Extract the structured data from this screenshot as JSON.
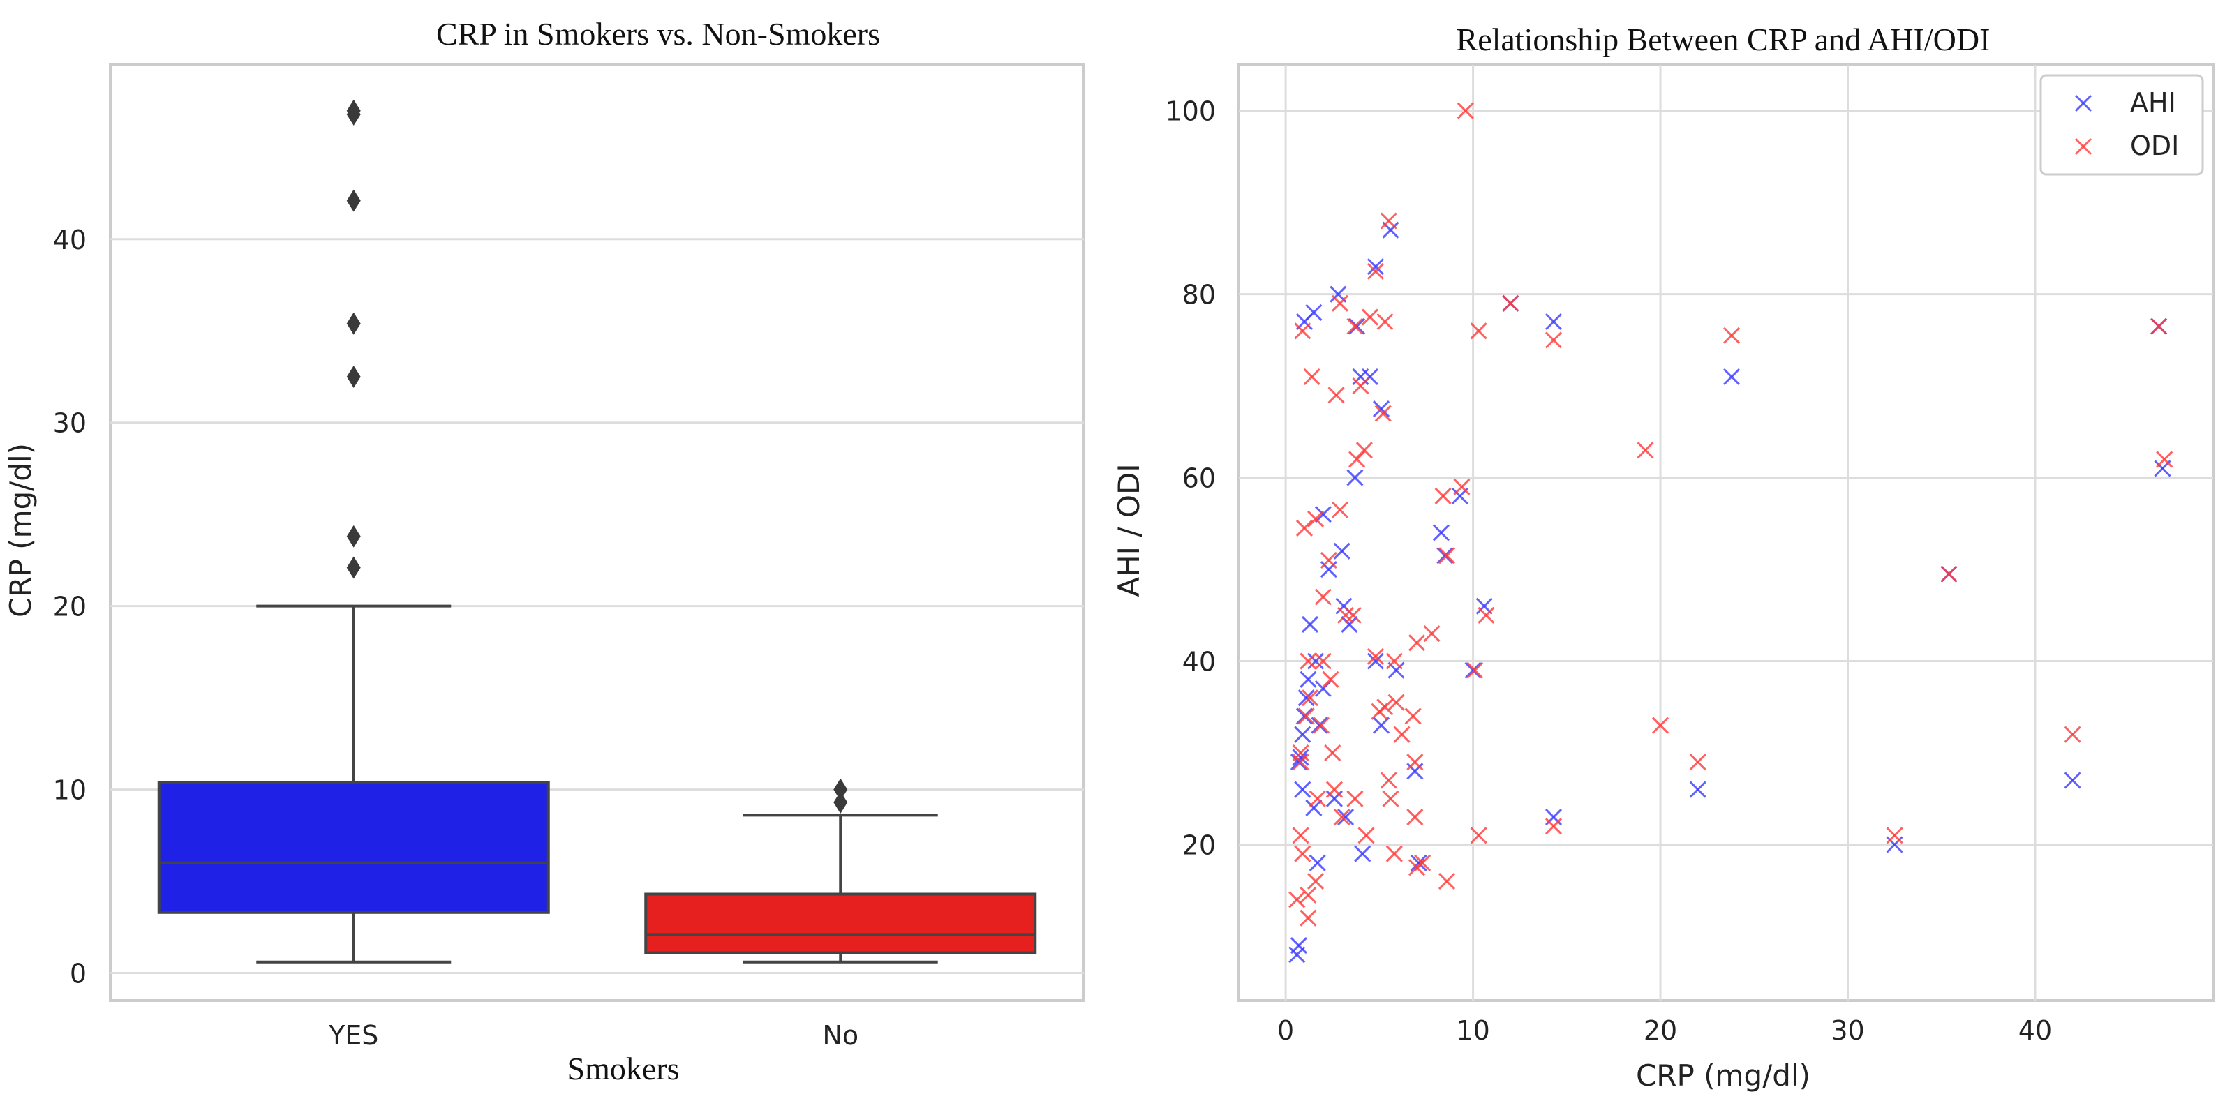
{
  "chart_data": [
    {
      "type": "box",
      "title": "CRP in Smokers vs. Non-Smokers",
      "xlabel": "Smokers",
      "ylabel": "CRP (mg/dl)",
      "categories": [
        "YES",
        "No"
      ],
      "ylim": [
        -1.5,
        49.5
      ],
      "yticks": [
        0,
        10,
        20,
        30,
        40
      ],
      "grid": true,
      "boxes": [
        {
          "category": "YES",
          "color": "#1f22e6",
          "whisker_low": 0.6,
          "q1": 3.3,
          "median": 6.0,
          "q3": 10.4,
          "whisker_high": 20.0,
          "outliers": [
            22.1,
            23.8,
            32.5,
            35.4,
            42.1,
            46.8,
            47.0
          ]
        },
        {
          "category": "No",
          "color": "#e61f1f",
          "whisker_low": 0.6,
          "q1": 1.1,
          "median": 2.1,
          "q3": 4.3,
          "whisker_high": 8.6,
          "outliers": [
            9.3,
            10.0
          ]
        }
      ]
    },
    {
      "type": "scatter",
      "title": "Relationship Between CRP and AHI/ODI",
      "xlabel": "CRP (mg/dl)",
      "ylabel": "AHI / ODI",
      "xlim": [
        -2.5,
        49.5
      ],
      "ylim": [
        3,
        105
      ],
      "xticks": [
        0,
        10,
        20,
        30,
        40
      ],
      "yticks": [
        20,
        40,
        60,
        80,
        100
      ],
      "grid": true,
      "legend": "top-right",
      "series": [
        {
          "name": "AHI",
          "color": "#3a3aff",
          "marker": "x",
          "points": [
            [
              0.6,
              8
            ],
            [
              0.7,
              9
            ],
            [
              0.7,
              29
            ],
            [
              0.8,
              29.5
            ],
            [
              0.9,
              26
            ],
            [
              0.9,
              32
            ],
            [
              1.0,
              34
            ],
            [
              1.1,
              36
            ],
            [
              1.2,
              38
            ],
            [
              1.3,
              44
            ],
            [
              1.5,
              24
            ],
            [
              1.6,
              40
            ],
            [
              1.7,
              18
            ],
            [
              1.8,
              33
            ],
            [
              2.0,
              56
            ],
            [
              2.0,
              37
            ],
            [
              2.3,
              50
            ],
            [
              2.6,
              25
            ],
            [
              2.8,
              80
            ],
            [
              3.0,
              52
            ],
            [
              3.1,
              46
            ],
            [
              3.2,
              23
            ],
            [
              3.4,
              44
            ],
            [
              3.7,
              60
            ],
            [
              3.8,
              76.5
            ],
            [
              4.0,
              71
            ],
            [
              4.1,
              19
            ],
            [
              4.5,
              71
            ],
            [
              4.8,
              40
            ],
            [
              4.8,
              83
            ],
            [
              5.1,
              67.5
            ],
            [
              5.1,
              33
            ],
            [
              5.6,
              87
            ],
            [
              5.9,
              39
            ],
            [
              6.9,
              28
            ],
            [
              7.1,
              18
            ],
            [
              8.3,
              54
            ],
            [
              8.5,
              51.5
            ],
            [
              9.3,
              58
            ],
            [
              10.0,
              39
            ],
            [
              10.6,
              46
            ],
            [
              12.0,
              79
            ],
            [
              14.3,
              77
            ],
            [
              14.3,
              23
            ],
            [
              22.0,
              26
            ],
            [
              23.8,
              71
            ],
            [
              32.5,
              20
            ],
            [
              35.4,
              49.5
            ],
            [
              42.0,
              27
            ],
            [
              46.8,
              61
            ],
            [
              46.6,
              76.5
            ],
            [
              1.0,
              77
            ],
            [
              1.5,
              78
            ]
          ]
        },
        {
          "name": "ODI",
          "color": "#ff3a3a",
          "marker": "x",
          "points": [
            [
              9.6,
              100
            ],
            [
              5.5,
              88
            ],
            [
              4.8,
              82.5
            ],
            [
              2.9,
              79
            ],
            [
              12.0,
              79
            ],
            [
              4.5,
              77.5
            ],
            [
              3.7,
              76.5
            ],
            [
              5.3,
              77
            ],
            [
              0.9,
              76
            ],
            [
              10.3,
              76
            ],
            [
              14.3,
              75
            ],
            [
              23.8,
              75.5
            ],
            [
              46.6,
              76.5
            ],
            [
              1.4,
              71
            ],
            [
              4.0,
              70
            ],
            [
              2.7,
              69
            ],
            [
              5.2,
              67
            ],
            [
              4.2,
              63
            ],
            [
              3.8,
              62
            ],
            [
              19.2,
              63
            ],
            [
              46.9,
              62
            ],
            [
              9.4,
              59
            ],
            [
              8.4,
              58
            ],
            [
              2.9,
              56.5
            ],
            [
              1.6,
              55.5
            ],
            [
              1.0,
              54.5
            ],
            [
              8.6,
              51.5
            ],
            [
              2.3,
              51
            ],
            [
              10.7,
              45
            ],
            [
              2.0,
              47
            ],
            [
              3.2,
              45
            ],
            [
              3.6,
              45
            ],
            [
              7.0,
              42
            ],
            [
              7.8,
              43
            ],
            [
              1.2,
              40
            ],
            [
              2.0,
              40
            ],
            [
              4.8,
              40.5
            ],
            [
              5.8,
              40
            ],
            [
              10.1,
              39
            ],
            [
              2.4,
              38
            ],
            [
              5.9,
              35.5
            ],
            [
              5.3,
              35
            ],
            [
              6.8,
              34
            ],
            [
              5.0,
              34.5
            ],
            [
              1.1,
              34
            ],
            [
              1.9,
              33
            ],
            [
              6.2,
              32
            ],
            [
              20.0,
              33
            ],
            [
              42.0,
              32
            ],
            [
              0.8,
              30
            ],
            [
              2.5,
              30
            ],
            [
              6.9,
              29
            ],
            [
              22.0,
              29
            ],
            [
              0.8,
              29
            ],
            [
              5.5,
              27
            ],
            [
              3.0,
              23
            ],
            [
              2.6,
              26
            ],
            [
              6.9,
              23
            ],
            [
              14.3,
              22
            ],
            [
              1.7,
              25
            ],
            [
              3.7,
              25
            ],
            [
              5.6,
              25
            ],
            [
              4.3,
              21
            ],
            [
              10.3,
              21
            ],
            [
              0.8,
              21
            ],
            [
              32.5,
              21
            ],
            [
              35.4,
              49.5
            ],
            [
              5.8,
              19
            ],
            [
              0.9,
              19
            ],
            [
              7.0,
              17.5
            ],
            [
              8.6,
              16
            ],
            [
              1.6,
              16
            ],
            [
              0.6,
              14
            ],
            [
              1.2,
              14.5
            ],
            [
              1.2,
              12
            ],
            [
              7.3,
              18
            ],
            [
              1.3,
              36
            ]
          ]
        }
      ]
    }
  ]
}
